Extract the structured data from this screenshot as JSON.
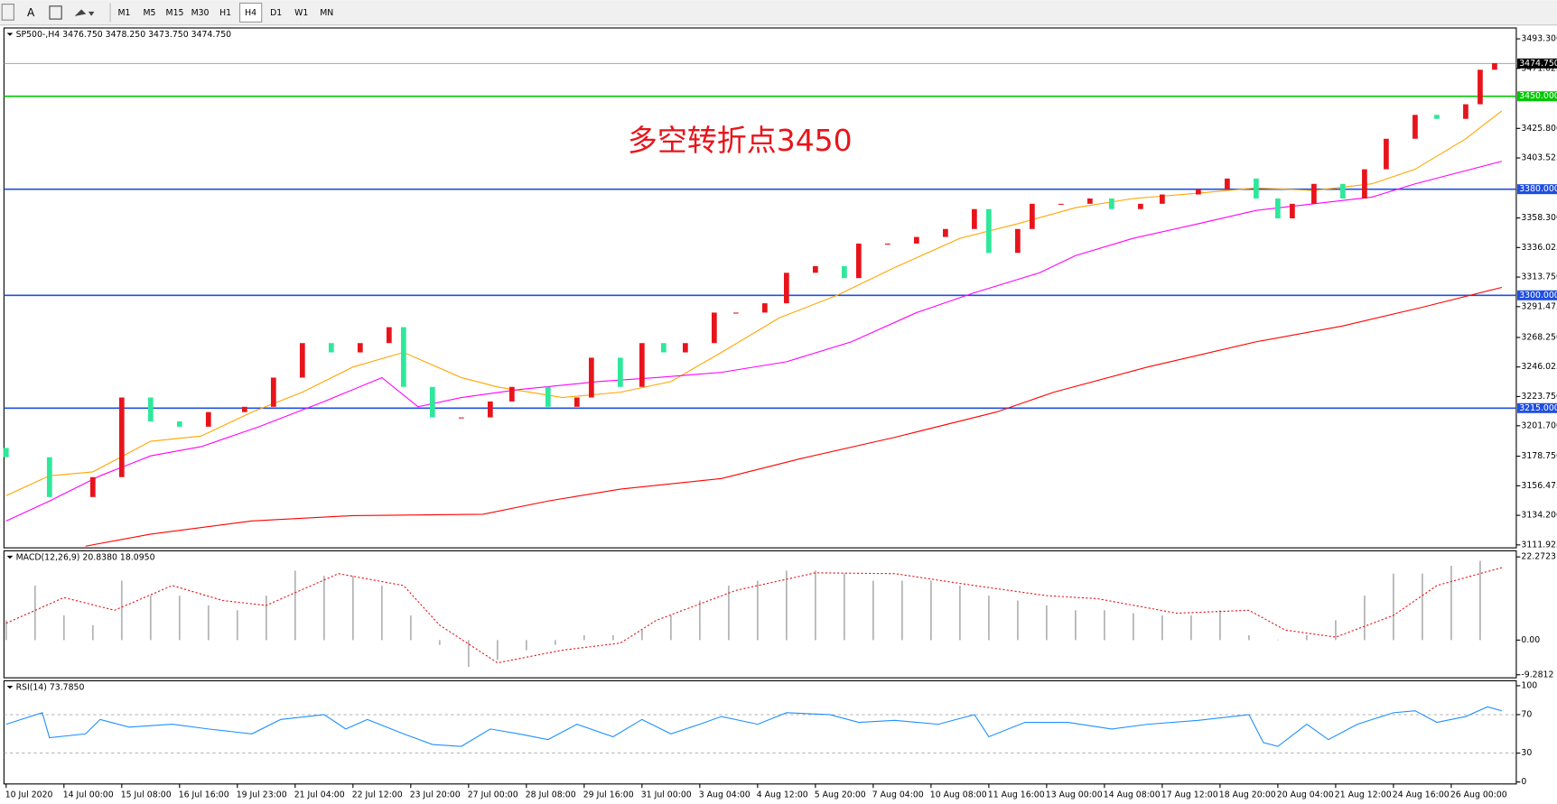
{
  "toolbar": {
    "text_tool": "A",
    "timeframes": [
      "M1",
      "M5",
      "M15",
      "M30",
      "H1",
      "H4",
      "D1",
      "W1",
      "MN"
    ],
    "active": 5
  },
  "chart_data": [
    {
      "type": "candlestick",
      "title": "SP500-,H4 3476.750 3478.250 3473.750 3474.750",
      "annotation": "多空转折点3450",
      "annotation_color": "#e8141b",
      "xlim": [
        -0.3,
        209
      ],
      "ylim": [
        3109.7,
        3501.5
      ],
      "yticks": [
        {
          "value": 3493.3,
          "label": "3493.300"
        },
        {
          "value": 3471.025,
          "label": "3471.025"
        },
        {
          "value": 3425.8,
          "label": "3425.800"
        },
        {
          "value": 3403.525,
          "label": "3403.525"
        },
        {
          "value": 3358.3,
          "label": "3358.300"
        },
        {
          "value": 3336.025,
          "label": "3336.025"
        },
        {
          "value": 3313.75,
          "label": "3313.750"
        },
        {
          "value": 3291.475,
          "label": "3291.475"
        },
        {
          "value": 3268.25,
          "label": "3268.250"
        },
        {
          "value": 3246.025,
          "label": "3246.025"
        },
        {
          "value": 3223.75,
          "label": "3223.750"
        },
        {
          "value": 3201.7,
          "label": "3201.700"
        },
        {
          "value": 3178.75,
          "label": "3178.750"
        },
        {
          "value": 3156.475,
          "label": "3156.475"
        },
        {
          "value": 3134.2,
          "label": "3134.200"
        },
        {
          "value": 3111.925,
          "label": "3111.925"
        }
      ],
      "levels": [
        {
          "value": 3450,
          "label": "3450.000",
          "color": "#00c800"
        },
        {
          "value": 3380,
          "label": "3380.000",
          "color": "#1f4fe0"
        },
        {
          "value": 3300,
          "label": "3300.000",
          "color": "#1f4fe0"
        },
        {
          "value": 3215,
          "label": "3215.000",
          "color": "#1f4fe0"
        }
      ],
      "price": {
        "value": 3474.75,
        "label": "3474.750"
      },
      "up_color": "#e8141b",
      "down_color": "#2ee89a",
      "candles": {
        "x": [
          0,
          6,
          12,
          16,
          20,
          24,
          28,
          33,
          37,
          41,
          45,
          49,
          53,
          55,
          59,
          63,
          67,
          70,
          75,
          79,
          81,
          85,
          88,
          91,
          94,
          98,
          101,
          105,
          108,
          112,
          116,
          118,
          122,
          126,
          130,
          134,
          136,
          140,
          142,
          146,
          150,
          153,
          157,
          160,
          165,
          169,
          173,
          176,
          178,
          181,
          185,
          188,
          191,
          195,
          198,
          202,
          204,
          206
        ],
        "open": [
          3185,
          3178,
          3148,
          3163,
          3223,
          3205,
          3201,
          3212,
          3216,
          3238,
          3264,
          3257,
          3264,
          3276,
          3231,
          3208,
          3208,
          3220,
          3231,
          3216,
          3223,
          3253,
          3231,
          3264,
          3257,
          3264,
          3287,
          3287,
          3294,
          3317,
          3322,
          3313,
          3339,
          3339,
          3344,
          3350,
          3365,
          3332,
          3350,
          3369,
          3369,
          3373,
          3365,
          3369,
          3376,
          3380,
          3388,
          3373,
          3358,
          3369,
          3384,
          3373,
          3395,
          3418,
          3436,
          3433,
          3444,
          3470
        ],
        "close": [
          3178,
          3148,
          3163,
          3223,
          3205,
          3201,
          3212,
          3216,
          3238,
          3264,
          3257,
          3264,
          3276,
          3231,
          3208,
          3208,
          3220,
          3231,
          3216,
          3223,
          3253,
          3231,
          3264,
          3257,
          3264,
          3287,
          3287,
          3294,
          3317,
          3322,
          3313,
          3339,
          3339,
          3344,
          3350,
          3365,
          3332,
          3350,
          3369,
          3369,
          3373,
          3365,
          3369,
          3376,
          3380,
          3388,
          3373,
          3358,
          3369,
          3384,
          3373,
          3395,
          3418,
          3436,
          3433,
          3444,
          3470,
          3475
        ]
      },
      "lines": [
        {
          "color": "#ffa500",
          "x": [
            0,
            6,
            12,
            20,
            27,
            34,
            41,
            48,
            55,
            63,
            68,
            77,
            85,
            92,
            99,
            107,
            115,
            123,
            132,
            140,
            148,
            156,
            165,
            173,
            181,
            189,
            195,
            202,
            207
          ],
          "values": [
            3149,
            3164,
            3167,
            3190,
            3194,
            3212,
            3227,
            3246,
            3257,
            3238,
            3231,
            3223,
            3227,
            3235,
            3257,
            3283,
            3300,
            3321,
            3343,
            3354,
            3366,
            3373,
            3377,
            3381,
            3379,
            3384,
            3395,
            3418,
            3439
          ]
        },
        {
          "color": "#ff00ff",
          "x": [
            0,
            6,
            13,
            20,
            27,
            35,
            44,
            52,
            57,
            63,
            71,
            82,
            90,
            99,
            108,
            117,
            126,
            134,
            143,
            148,
            156,
            165,
            173,
            181,
            189,
            195,
            202,
            207
          ],
          "values": [
            3130,
            3145,
            3164,
            3179,
            3186,
            3201,
            3220,
            3238,
            3216,
            3223,
            3229,
            3235,
            3238,
            3242,
            3250,
            3265,
            3287,
            3302,
            3317,
            3330,
            3343,
            3354,
            3364,
            3369,
            3374,
            3384,
            3394,
            3401
          ]
        },
        {
          "color": "#ff0000",
          "x": [
            11,
            20,
            34,
            48,
            66,
            75,
            85,
            99,
            110,
            123,
            137,
            145,
            158,
            173,
            185,
            196,
            207
          ],
          "values": [
            3111,
            3120,
            3130,
            3134,
            3135,
            3145,
            3154,
            3162,
            3177,
            3193,
            3212,
            3227,
            3246,
            3265,
            3277,
            3291,
            3306
          ]
        }
      ]
    },
    {
      "type": "macd",
      "title": "MACD(12,26,9) 20.8380 18.0950",
      "xlim": [
        -0.3,
        209
      ],
      "ylim": [
        -10.1,
        23.9
      ],
      "yticks": [
        22.2723,
        {
          "value": 0,
          "label": "0.00"
        },
        -9.2812
      ],
      "hist_color": "#b4b4b4",
      "signal_color": "#e8141b",
      "histogram": {
        "x": [
          0,
          4,
          8,
          12,
          16,
          20,
          24,
          28,
          32,
          36,
          40,
          44,
          48,
          52,
          56,
          60,
          64,
          68,
          72,
          76,
          80,
          84,
          88,
          92,
          96,
          100,
          104,
          108,
          112,
          116,
          120,
          124,
          128,
          132,
          136,
          140,
          144,
          148,
          152,
          156,
          160,
          164,
          168,
          172,
          176,
          180,
          184,
          188,
          192,
          196,
          200,
          204
        ],
        "values": [
          5.3,
          14.6,
          6.6,
          4.0,
          15.9,
          11.9,
          11.9,
          9.3,
          8.0,
          11.9,
          18.6,
          17.2,
          17.2,
          14.6,
          6.6,
          -1.3,
          -7.2,
          -5.3,
          -2.7,
          -1.3,
          1.3,
          1.3,
          2.7,
          6.6,
          10.6,
          14.6,
          15.9,
          18.6,
          18.6,
          17.8,
          15.9,
          15.9,
          15.9,
          14.6,
          11.9,
          10.6,
          9.3,
          8.0,
          8.0,
          7.2,
          6.6,
          6.6,
          8.0,
          1.3,
          0,
          1.3,
          5.3,
          11.9,
          17.8,
          17.8,
          19.9,
          21.2
        ]
      },
      "signal": {
        "x": [
          0,
          8,
          15,
          23,
          30,
          36,
          46,
          55,
          60,
          68,
          77,
          85,
          90,
          101,
          112,
          123,
          134,
          144,
          151,
          162,
          172,
          177,
          184,
          192,
          198,
          207
        ],
        "values": [
          4.5,
          11.4,
          8.0,
          14.6,
          10.6,
          9.3,
          17.8,
          14.6,
          4.0,
          -6.1,
          -2.7,
          -0.8,
          5.3,
          13.3,
          18.0,
          17.8,
          14.6,
          11.9,
          11.1,
          7.2,
          8.0,
          2.7,
          0.8,
          6.6,
          14.6,
          19.4
        ]
      }
    },
    {
      "type": "line",
      "title": "RSI(14) 73.7850",
      "xlim": [
        -0.3,
        209
      ],
      "ylim": [
        0,
        100
      ],
      "yticks": [
        100,
        70,
        30,
        0
      ],
      "grid": "dashed",
      "color": "#1e90ff",
      "x": [
        0,
        5,
        6,
        11,
        13,
        17,
        23,
        28,
        34,
        38,
        44,
        47,
        50,
        55,
        59,
        63,
        67,
        71,
        75,
        79,
        84,
        88,
        92,
        96,
        99,
        104,
        108,
        114,
        118,
        123,
        129,
        134,
        136,
        141,
        147,
        153,
        158,
        165,
        172,
        174,
        176,
        180,
        183,
        187,
        192,
        195,
        198,
        202,
        205,
        207
      ],
      "values": [
        60,
        72,
        46,
        50,
        65,
        57,
        60,
        55,
        50,
        65,
        70,
        55,
        65,
        50,
        39,
        37,
        55,
        50,
        44,
        60,
        47,
        65,
        50,
        60,
        68,
        60,
        72,
        70,
        62,
        64,
        60,
        70,
        47,
        62,
        62,
        55,
        60,
        64,
        70,
        41,
        37,
        60,
        44,
        60,
        72,
        74,
        62,
        68,
        78,
        74
      ],
      "xticks": [
        {
          "value": 0,
          "label": "10 Jul 2020"
        },
        {
          "value": 8,
          "label": "14 Jul 00:00"
        },
        {
          "value": 16,
          "label": "15 Jul 08:00"
        },
        {
          "value": 24,
          "label": "16 Jul 16:00"
        },
        {
          "value": 32,
          "label": "19 Jul 23:00"
        },
        {
          "value": 40,
          "label": "21 Jul 04:00"
        },
        {
          "value": 48,
          "label": "22 Jul 12:00"
        },
        {
          "value": 56,
          "label": "23 Jul 20:00"
        },
        {
          "value": 64,
          "label": "27 Jul 00:00"
        },
        {
          "value": 72,
          "label": "28 Jul 08:00"
        },
        {
          "value": 80,
          "label": "29 Jul 16:00"
        },
        {
          "value": 88,
          "label": "31 Jul 00:00"
        },
        {
          "value": 96,
          "label": "3 Aug 04:00"
        },
        {
          "value": 104,
          "label": "4 Aug 12:00"
        },
        {
          "value": 112,
          "label": "5 Aug 20:00"
        },
        {
          "value": 120,
          "label": "7 Aug 04:00"
        },
        {
          "value": 128,
          "label": "10 Aug 08:00"
        },
        {
          "value": 136,
          "label": "11 Aug 16:00"
        },
        {
          "value": 144,
          "label": "13 Aug 00:00"
        },
        {
          "value": 152,
          "label": "14 Aug 08:00"
        },
        {
          "value": 160,
          "label": "17 Aug 12:00"
        },
        {
          "value": 168,
          "label": "18 Aug 20:00"
        },
        {
          "value": 176,
          "label": "20 Aug 04:00"
        },
        {
          "value": 184,
          "label": "21 Aug 12:00"
        },
        {
          "value": 192,
          "label": "24 Aug 16:00"
        },
        {
          "value": 200,
          "label": "26 Aug 00:00"
        }
      ]
    }
  ]
}
